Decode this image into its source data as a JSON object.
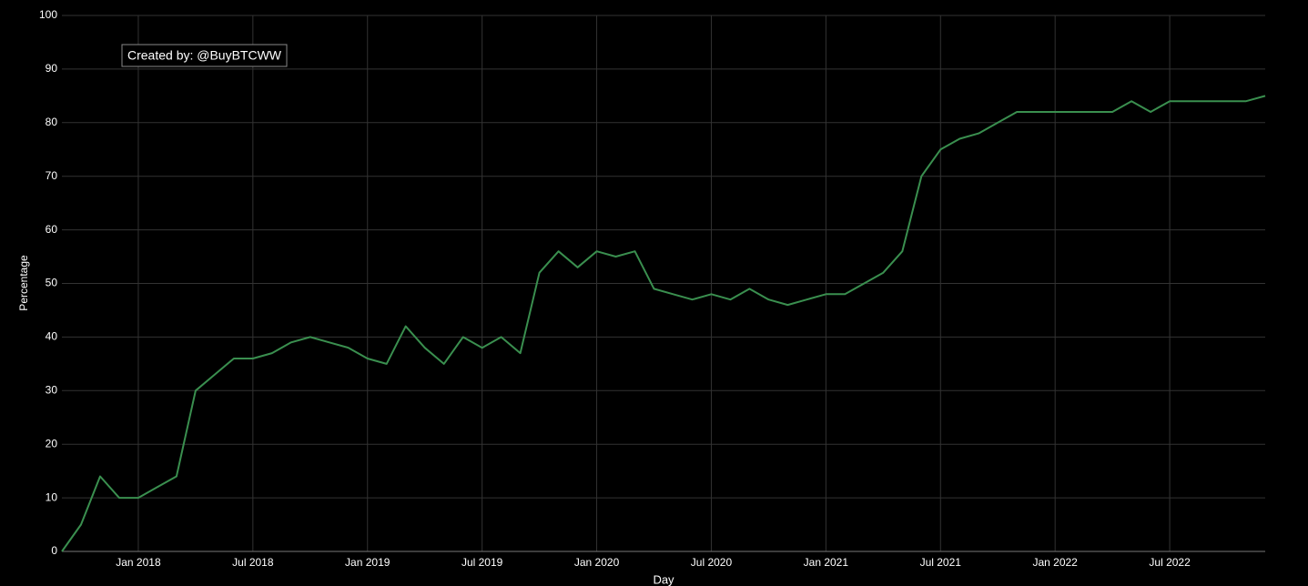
{
  "chart_data": {
    "type": "line",
    "annotation": "Created by: @BuyBTCWW",
    "x_label": "Day",
    "y_label": "Percentage",
    "x": [
      "2017-09",
      "2017-10",
      "2017-11",
      "2017-12",
      "2018-01",
      "2018-02",
      "2018-03",
      "2018-04",
      "2018-05",
      "2018-06",
      "2018-07",
      "2018-08",
      "2018-09",
      "2018-10",
      "2018-11",
      "2018-12",
      "2019-01",
      "2019-02",
      "2019-03",
      "2019-04",
      "2019-05",
      "2019-06",
      "2019-07",
      "2019-08",
      "2019-09",
      "2019-10",
      "2019-11",
      "2019-12",
      "2020-01",
      "2020-02",
      "2020-03",
      "2020-04",
      "2020-05",
      "2020-06",
      "2020-07",
      "2020-08",
      "2020-09",
      "2020-10",
      "2020-11",
      "2020-12",
      "2021-01",
      "2021-02",
      "2021-03",
      "2021-04",
      "2021-05",
      "2021-06",
      "2021-07",
      "2021-08",
      "2021-09",
      "2021-10",
      "2021-11",
      "2021-12",
      "2022-01",
      "2022-02",
      "2022-03",
      "2022-04",
      "2022-05",
      "2022-06",
      "2022-07",
      "2022-08",
      "2022-09",
      "2022-10",
      "2022-11",
      "2022-12"
    ],
    "series": [
      {
        "name": "Percentage",
        "color": "#3a8f4f",
        "values": [
          0,
          5,
          14,
          10,
          10,
          12,
          14,
          30,
          33,
          36,
          36,
          37,
          39,
          40,
          39,
          38,
          36,
          35,
          42,
          38,
          35,
          40,
          38,
          40,
          37,
          52,
          56,
          53,
          56,
          55,
          56,
          49,
          48,
          47,
          48,
          47,
          49,
          47,
          46,
          47,
          48,
          48,
          50,
          52,
          56,
          70,
          75,
          77,
          78,
          80,
          82,
          82,
          82,
          82,
          82,
          82,
          84,
          82,
          84,
          84,
          84,
          84,
          84,
          85
        ]
      }
    ],
    "xlim": [
      "2017-09",
      "2022-12"
    ],
    "xticks": [
      {
        "value": "2018-01",
        "label": "Jan 2018"
      },
      {
        "value": "2018-07",
        "label": "Jul 2018"
      },
      {
        "value": "2019-01",
        "label": "Jan 2019"
      },
      {
        "value": "2019-07",
        "label": "Jul 2019"
      },
      {
        "value": "2020-01",
        "label": "Jan 2020"
      },
      {
        "value": "2020-07",
        "label": "Jul 2020"
      },
      {
        "value": "2021-01",
        "label": "Jan 2021"
      },
      {
        "value": "2021-07",
        "label": "Jul 2021"
      },
      {
        "value": "2022-01",
        "label": "Jan 2022"
      },
      {
        "value": "2022-07",
        "label": "Jul 2022"
      }
    ],
    "ylim": [
      0,
      100
    ],
    "yticks": [
      0,
      10,
      20,
      30,
      40,
      50,
      60,
      70,
      80,
      90,
      100
    ],
    "grid": true
  }
}
